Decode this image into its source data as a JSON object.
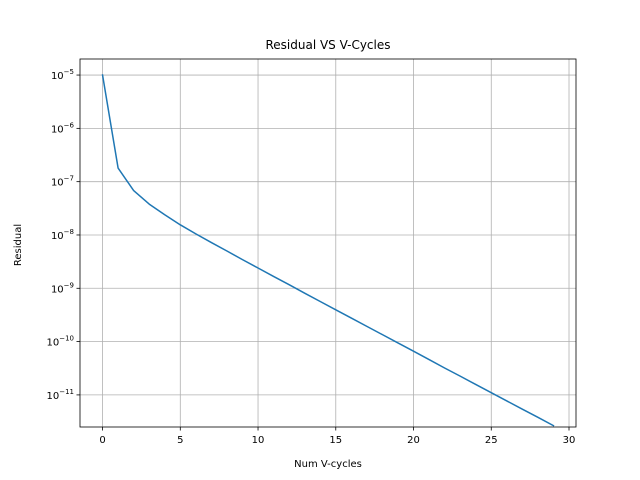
{
  "chart_data": {
    "type": "line",
    "title": "Residual VS V-Cycles",
    "xlabel": "Num V-cycles",
    "ylabel": "Residual",
    "yscale": "log",
    "grid": true,
    "xlim": [
      -1.45,
      30.45
    ],
    "ylim": [
      2.5e-12,
      2e-05
    ],
    "xticks": [
      0,
      5,
      10,
      15,
      20,
      25,
      30
    ],
    "xtick_labels": [
      "0",
      "5",
      "10",
      "15",
      "20",
      "25",
      "30"
    ],
    "yticks": [
      1e-11,
      1e-10,
      1e-09,
      1e-08,
      1e-07,
      1e-06,
      1e-05
    ],
    "ytick_exponents": [
      "−11",
      "−10",
      "−9",
      "−8",
      "−7",
      "−6",
      "−5"
    ],
    "ytick_base": "10",
    "line_color": "#1f77b4",
    "series": [
      {
        "x": [
          0,
          1,
          2,
          3,
          4,
          5,
          6,
          7,
          8,
          9,
          10,
          11,
          12,
          13,
          14,
          15,
          16,
          17,
          18,
          19,
          20,
          21,
          22,
          23,
          24,
          25,
          26,
          27,
          28,
          29
        ],
        "values": [
          1e-05,
          1.8e-07,
          6.8e-08,
          3.8e-08,
          2.4e-08,
          1.55e-08,
          1.05e-08,
          7.2e-09,
          5e-09,
          3.45e-09,
          2.4e-09,
          1.67e-09,
          1.17e-09,
          8.1e-10,
          5.65e-10,
          3.95e-10,
          2.76e-10,
          1.93e-10,
          1.35e-10,
          9.45e-11,
          6.6e-11,
          4.6e-11,
          3.2e-11,
          2.25e-11,
          1.57e-11,
          1.1e-11,
          7.7e-12,
          5.4e-12,
          3.8e-12,
          2.65e-12
        ]
      }
    ]
  }
}
